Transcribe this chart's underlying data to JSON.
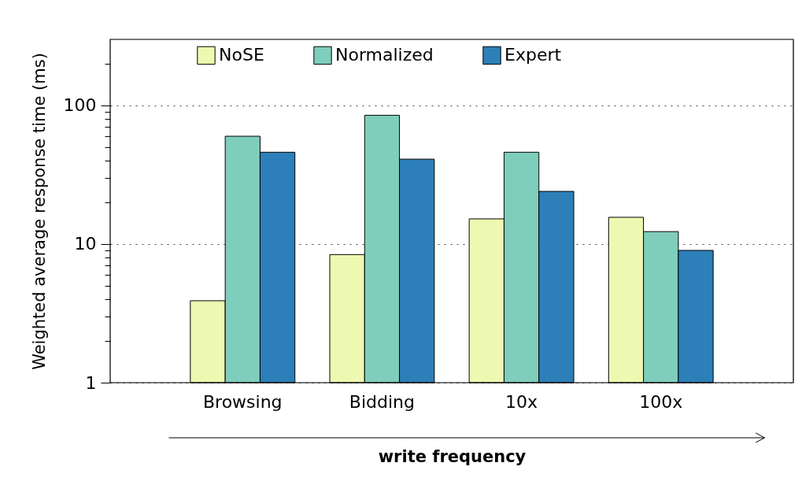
{
  "chart_data": {
    "type": "bar",
    "xlabel": "write frequency",
    "ylabel": "Weighted average response time (ms)",
    "categories": [
      "Browsing",
      "Bidding",
      "10x",
      "100x"
    ],
    "series": [
      {
        "name": "NoSE",
        "color": "#edf8b1",
        "values": [
          3.9,
          8.4,
          15.2,
          15.6
        ]
      },
      {
        "name": "Normalized",
        "color": "#7fcdbb",
        "values": [
          60,
          85,
          46,
          12.3
        ]
      },
      {
        "name": "Expert",
        "color": "#2c7fb8",
        "values": [
          46,
          41,
          24,
          9.0
        ]
      }
    ],
    "log": "y",
    "ylim": [
      1,
      300
    ],
    "yticks": [
      1,
      {
        "value": 2,
        "label": null
      },
      {
        "value": 3,
        "label": null
      },
      {
        "value": 4,
        "label": null
      },
      {
        "value": 5,
        "label": null
      },
      {
        "value": 6,
        "label": null
      },
      {
        "value": 7,
        "label": null
      },
      {
        "value": 8,
        "label": null
      },
      {
        "value": 9,
        "label": null
      },
      10,
      {
        "value": 20,
        "label": null
      },
      {
        "value": 30,
        "label": null
      },
      {
        "value": 40,
        "label": null
      },
      {
        "value": 50,
        "label": null
      },
      {
        "value": 60,
        "label": null
      },
      {
        "value": 70,
        "label": null
      },
      {
        "value": 80,
        "label": null
      },
      {
        "value": 90,
        "label": null
      },
      100,
      {
        "value": 200,
        "label": null
      }
    ],
    "grid": "y",
    "legend": "top"
  }
}
